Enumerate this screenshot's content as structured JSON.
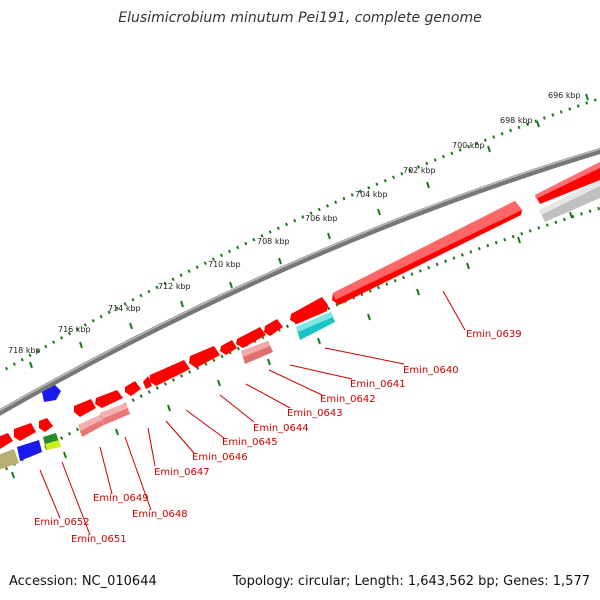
{
  "title": "Elusimicrobium minutum Pei191, complete genome",
  "footer": {
    "accession": "Accession: NC_010644",
    "summary": "Topology: circular; Length: 1,643,562 bp; Genes: 1,577"
  },
  "colors": {
    "backbone": "#8a8a8a",
    "forward_gene": "#ff0000",
    "reverse_gene": "#f08080",
    "tick": "#1a7a1a",
    "label": "#cc0000",
    "cyan_gene": "#19c4c4",
    "blue_gene": "#1a1aee",
    "grey_gene": "#c0c0c0",
    "olive_gene": "#b8b070",
    "green_gene": "#6aca3a"
  },
  "ruler_labels": [
    "696 kbp",
    "698 kbp",
    "700 kbp",
    "702 kbp",
    "704 kbp",
    "706 kbp",
    "708 kbp",
    "710 kbp",
    "712 kbp",
    "714 kbp",
    "716 kbp",
    "718 kbp"
  ],
  "gene_labels": [
    "Emin_0639",
    "Emin_0640",
    "Emin_0641",
    "Emin_0642",
    "Emin_0643",
    "Emin_0644",
    "Emin_0645",
    "Emin_0646",
    "Emin_0647",
    "Emin_0648",
    "Emin_0649",
    "Emin_0651",
    "Emin_0652"
  ]
}
